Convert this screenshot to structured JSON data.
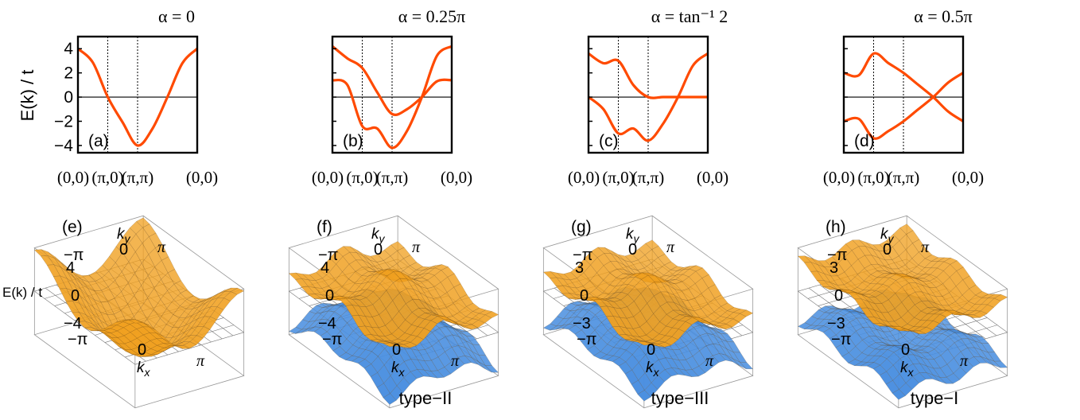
{
  "y_axis_label": "E(k) / t",
  "surface_axis_label": "E(k) / t",
  "panels": [
    {
      "title": "α = 0",
      "label": "(a)",
      "x_ticks": [
        "(0,0)",
        "(π,0)",
        "(π,π)",
        "(0,0)"
      ],
      "y_ticks": [
        "4",
        "2",
        "0",
        "−2",
        "−4"
      ]
    },
    {
      "title": "α = 0.25π",
      "label": "(b)",
      "x_ticks": [
        "(0,0)",
        "(π,0)",
        "(π,π)",
        "(0,0)"
      ]
    },
    {
      "title": "α = tan⁻¹ 2",
      "label": "(c)",
      "x_ticks": [
        "(0,0)",
        "(π,0)",
        "(π,π)",
        "(0,0)"
      ]
    },
    {
      "title": "α = 0.5π",
      "label": "(d)",
      "x_ticks": [
        "(0,0)",
        "(π,0)",
        "(π,π)",
        "(0,0)"
      ]
    }
  ],
  "surfaces": [
    {
      "label": "(e)",
      "z_ticks": [
        "4",
        "0",
        "−4"
      ],
      "ky_label": "k",
      "ky_sub": "y",
      "kx_label": "k",
      "kx_sub": "x",
      "ky_ticks": [
        "−π",
        "0",
        "π"
      ],
      "kx_ticks": [
        "−π",
        "0",
        "π"
      ],
      "type_label": ""
    },
    {
      "label": "(f)",
      "z_ticks": [
        "4",
        "0",
        "−4"
      ],
      "ky_label": "k",
      "ky_sub": "y",
      "kx_label": "k",
      "kx_sub": "x",
      "ky_ticks": [
        "−π",
        "0",
        "π"
      ],
      "kx_ticks": [
        "−π",
        "0",
        "π"
      ],
      "type_label": "type−II"
    },
    {
      "label": "(g)",
      "z_ticks": [
        "3",
        "0",
        "−3"
      ],
      "ky_label": "k",
      "ky_sub": "y",
      "kx_label": "k",
      "kx_sub": "x",
      "ky_ticks": [
        "−π",
        "0",
        "π"
      ],
      "kx_ticks": [
        "−π",
        "0",
        "π"
      ],
      "type_label": "type−III"
    },
    {
      "label": "(h)",
      "z_ticks": [
        "3",
        "0",
        "−3"
      ],
      "ky_label": "k",
      "ky_sub": "y",
      "kx_label": "k",
      "kx_sub": "x",
      "ky_ticks": [
        "−π",
        "0",
        "π"
      ],
      "kx_ticks": [
        "−π",
        "0",
        "π"
      ],
      "type_label": "type−I"
    }
  ],
  "colors": {
    "band": "#ff4a00",
    "upper_surface": "#f0a020",
    "lower_surface": "#4a8fe0",
    "frame": "#000000"
  },
  "chart_data": [
    {
      "type": "line",
      "title": "α = 0",
      "ylabel": "E(k) / t",
      "ylim": [
        -4.6,
        5.0
      ],
      "x_ticks": [
        "(0,0)",
        "(π,0)",
        "(π,π)",
        "(0,0)"
      ],
      "series": [
        {
          "values": [
            [
              0,
              4.0
            ],
            [
              0.5,
              2.85
            ],
            [
              1.0,
              0.0
            ],
            [
              1.5,
              -2.1
            ],
            [
              2.0,
              -4.0
            ],
            [
              2.5,
              -2.6
            ],
            [
              3.0,
              0.0
            ],
            [
              3.5,
              2.8
            ],
            [
              4.0,
              4.0
            ]
          ]
        }
      ]
    },
    {
      "type": "line",
      "title": "α = 0.25π",
      "ylabel": "E(k) / t",
      "ylim": [
        -4.6,
        5.0
      ],
      "x_ticks": [
        "(0,0)",
        "(π,0)",
        "(π,π)",
        "(0,0)"
      ],
      "series": [
        {
          "values": [
            [
              0,
              4.2
            ],
            [
              0.5,
              3.2
            ],
            [
              1.0,
              2.4
            ],
            [
              1.5,
              0.4
            ],
            [
              2.0,
              -1.4
            ],
            [
              2.5,
              -1.0
            ],
            [
              3.0,
              0.0
            ],
            [
              3.5,
              1.3
            ],
            [
              4.0,
              1.4
            ]
          ]
        },
        {
          "values": [
            [
              0,
              1.4
            ],
            [
              0.5,
              1.0
            ],
            [
              1.0,
              -2.4
            ],
            [
              1.5,
              -2.6
            ],
            [
              2.0,
              -4.2
            ],
            [
              2.5,
              -2.8
            ],
            [
              3.0,
              0.0
            ],
            [
              3.5,
              3.4
            ],
            [
              4.0,
              4.2
            ]
          ]
        }
      ]
    },
    {
      "type": "line",
      "title": "α = tan⁻¹ 2",
      "ylabel": "E(k) / t",
      "ylim": [
        -4.6,
        5.0
      ],
      "x_ticks": [
        "(0,0)",
        "(π,0)",
        "(π,π)",
        "(0,0)"
      ],
      "series": [
        {
          "values": [
            [
              0,
              3.6
            ],
            [
              0.5,
              2.8
            ],
            [
              1.0,
              3.0
            ],
            [
              1.5,
              1.0
            ],
            [
              2.0,
              0.0
            ],
            [
              2.5,
              0.0
            ],
            [
              3.0,
              0.0
            ],
            [
              3.5,
              0.0
            ],
            [
              4.0,
              0.0
            ]
          ]
        },
        {
          "values": [
            [
              0,
              0.0
            ],
            [
              0.5,
              -1.0
            ],
            [
              1.0,
              -3.0
            ],
            [
              1.5,
              -2.6
            ],
            [
              2.0,
              -3.6
            ],
            [
              2.5,
              -2.2
            ],
            [
              3.0,
              0.0
            ],
            [
              3.5,
              2.6
            ],
            [
              4.0,
              3.6
            ]
          ]
        }
      ]
    },
    {
      "type": "line",
      "title": "α = 0.5π",
      "ylabel": "E(k) / t",
      "ylim": [
        -4.6,
        5.0
      ],
      "x_ticks": [
        "(0,0)",
        "(π,0)",
        "(π,π)",
        "(0,0)"
      ],
      "series": [
        {
          "values": [
            [
              0,
              2.0
            ],
            [
              0.5,
              1.8
            ],
            [
              1.0,
              3.6
            ],
            [
              1.5,
              2.8
            ],
            [
              2.0,
              2.0
            ],
            [
              2.5,
              1.0
            ],
            [
              3.0,
              0.0
            ],
            [
              3.5,
              -1.2
            ],
            [
              4.0,
              -2.0
            ]
          ]
        },
        {
          "values": [
            [
              0,
              -2.0
            ],
            [
              0.5,
              -1.8
            ],
            [
              1.0,
              -3.4
            ],
            [
              1.5,
              -2.8
            ],
            [
              2.0,
              -2.0
            ],
            [
              2.5,
              -1.0
            ],
            [
              3.0,
              0.0
            ],
            [
              3.5,
              1.2
            ],
            [
              4.0,
              2.0
            ]
          ]
        }
      ]
    }
  ]
}
